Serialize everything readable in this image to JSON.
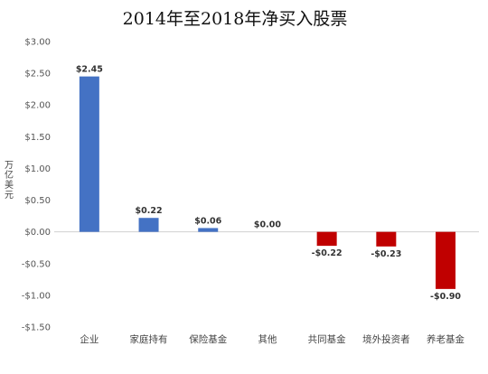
{
  "chart_data": {
    "type": "bar",
    "title": "2014年至2018年净买入股票",
    "ylabel": "万亿美元",
    "xlabel": "",
    "ylim": [
      -1.5,
      3.0
    ],
    "yticks": [
      3.0,
      2.5,
      2.0,
      1.5,
      1.0,
      0.5,
      0.0,
      -0.5,
      -1.0,
      -1.5
    ],
    "ytick_labels": [
      "$3.00",
      "$2.50",
      "$2.00",
      "$1.50",
      "$1.00",
      "$0.50",
      "$0.00",
      "-$0.50",
      "-$1.00",
      "-$1.50"
    ],
    "categories": [
      "企业",
      "家庭持有",
      "保险基金",
      "其他",
      "共同基金",
      "境外投资者",
      "养老基金"
    ],
    "values": [
      2.45,
      0.22,
      0.06,
      0.0,
      -0.22,
      -0.23,
      -0.9
    ],
    "data_labels": [
      "$2.45",
      "$0.22",
      "$0.06",
      "$0.00",
      "-$0.22",
      "-$0.23",
      "-$0.90"
    ],
    "grid": false,
    "legend": "none",
    "colors": {
      "positive": "#4472C4",
      "negative": "#C00000",
      "axis": "#D0D0D0"
    }
  }
}
